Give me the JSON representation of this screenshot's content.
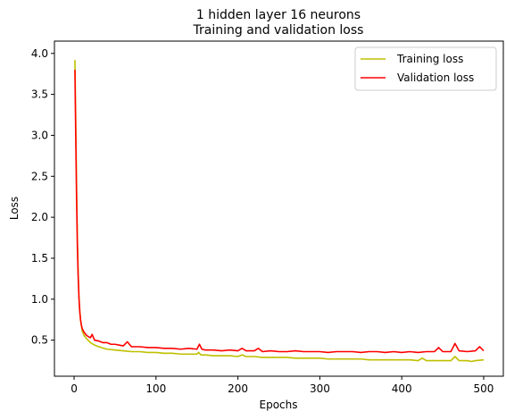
{
  "chart_data": {
    "type": "line",
    "title_line1": "1 hidden layer 16 neurons",
    "title_line2": "Training and validation loss",
    "xlabel": "Epochs",
    "ylabel": "Loss",
    "xlim": [
      -24,
      524
    ],
    "ylim": [
      0.06,
      4.15
    ],
    "xticks": [
      0,
      100,
      200,
      300,
      400,
      500
    ],
    "xtick_labels": [
      "0",
      "100",
      "200",
      "300",
      "400",
      "500"
    ],
    "yticks": [
      0.5,
      1.0,
      1.5,
      2.0,
      2.5,
      3.0,
      3.5,
      4.0
    ],
    "ytick_labels": [
      "0.5",
      "1.0",
      "1.5",
      "2.0",
      "2.5",
      "3.0",
      "3.5",
      "4.0"
    ],
    "grid": false,
    "legend_position": "upper right",
    "series": [
      {
        "name": "Training loss",
        "color": "#bfbf00",
        "x": [
          1,
          2,
          3,
          4,
          5,
          6,
          7,
          8,
          9,
          10,
          12,
          15,
          18,
          20,
          25,
          30,
          40,
          50,
          60,
          70,
          80,
          90,
          100,
          110,
          120,
          130,
          140,
          150,
          152,
          155,
          160,
          170,
          180,
          190,
          200,
          205,
          210,
          220,
          230,
          240,
          250,
          260,
          270,
          280,
          290,
          300,
          310,
          320,
          330,
          340,
          350,
          360,
          370,
          380,
          390,
          400,
          410,
          420,
          425,
          430,
          440,
          450,
          460,
          465,
          470,
          480,
          485,
          490,
          500
        ],
        "y": [
          3.92,
          3.2,
          2.4,
          1.75,
          1.32,
          1.02,
          0.85,
          0.74,
          0.67,
          0.61,
          0.56,
          0.52,
          0.49,
          0.47,
          0.44,
          0.42,
          0.39,
          0.38,
          0.37,
          0.36,
          0.36,
          0.35,
          0.35,
          0.34,
          0.34,
          0.33,
          0.33,
          0.33,
          0.35,
          0.32,
          0.32,
          0.31,
          0.31,
          0.31,
          0.3,
          0.32,
          0.3,
          0.3,
          0.29,
          0.29,
          0.29,
          0.29,
          0.28,
          0.28,
          0.28,
          0.28,
          0.27,
          0.27,
          0.27,
          0.27,
          0.27,
          0.26,
          0.26,
          0.26,
          0.26,
          0.26,
          0.26,
          0.25,
          0.28,
          0.25,
          0.25,
          0.25,
          0.25,
          0.3,
          0.25,
          0.25,
          0.24,
          0.25,
          0.26
        ]
      },
      {
        "name": "Validation loss",
        "color": "#ff0000",
        "x": [
          1,
          2,
          3,
          4,
          5,
          6,
          7,
          8,
          9,
          10,
          12,
          15,
          18,
          20,
          22,
          25,
          30,
          35,
          40,
          45,
          50,
          55,
          60,
          65,
          70,
          80,
          90,
          100,
          110,
          120,
          130,
          140,
          150,
          153,
          156,
          160,
          170,
          180,
          190,
          200,
          205,
          210,
          220,
          225,
          230,
          240,
          250,
          260,
          270,
          280,
          290,
          300,
          310,
          320,
          330,
          340,
          350,
          360,
          370,
          380,
          390,
          400,
          410,
          420,
          430,
          440,
          445,
          450,
          460,
          465,
          470,
          480,
          490,
          495,
          500
        ],
        "y": [
          3.8,
          3.0,
          2.25,
          1.65,
          1.27,
          1.0,
          0.84,
          0.74,
          0.68,
          0.64,
          0.6,
          0.56,
          0.54,
          0.53,
          0.57,
          0.5,
          0.49,
          0.47,
          0.47,
          0.45,
          0.45,
          0.44,
          0.43,
          0.48,
          0.42,
          0.42,
          0.41,
          0.41,
          0.4,
          0.4,
          0.39,
          0.4,
          0.39,
          0.45,
          0.39,
          0.38,
          0.38,
          0.37,
          0.38,
          0.37,
          0.4,
          0.37,
          0.37,
          0.4,
          0.36,
          0.37,
          0.36,
          0.36,
          0.37,
          0.36,
          0.36,
          0.36,
          0.35,
          0.36,
          0.36,
          0.36,
          0.35,
          0.36,
          0.36,
          0.35,
          0.36,
          0.35,
          0.36,
          0.35,
          0.36,
          0.36,
          0.41,
          0.36,
          0.36,
          0.46,
          0.37,
          0.36,
          0.37,
          0.42,
          0.37
        ]
      }
    ]
  }
}
